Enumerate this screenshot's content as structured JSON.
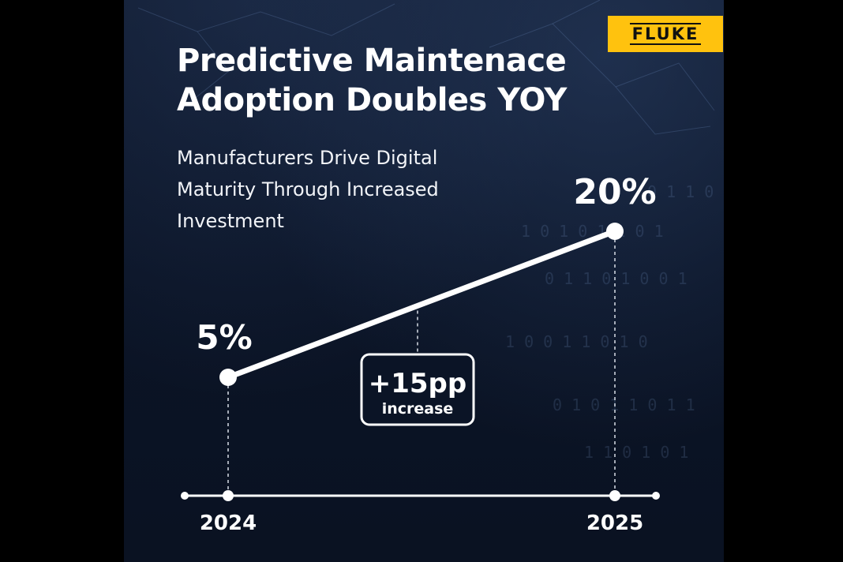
{
  "headline": {
    "line1": "Predictive Maintenace",
    "line2": "Adoption Doubles YOY"
  },
  "subtitle": {
    "line1": "Manufacturers Drive Digital",
    "line2": "Maturity Through Increased",
    "line3": "Investment"
  },
  "logo": "FLUKE",
  "colors": {
    "background": "#0b1426",
    "text": "#ffffff",
    "logo_yellow": "#ffc20e"
  },
  "chart_data": {
    "type": "line",
    "title": "Predictive Maintenace Adoption Doubles YOY",
    "x": [
      "2024",
      "2025"
    ],
    "series": [
      {
        "values": [
          5,
          20
        ]
      }
    ],
    "data_labels": [
      "5%",
      "20%"
    ],
    "annotation": {
      "value": "+15pp",
      "text": "increase"
    },
    "ylim": [
      0,
      25
    ],
    "grid": false,
    "legend": "none"
  }
}
